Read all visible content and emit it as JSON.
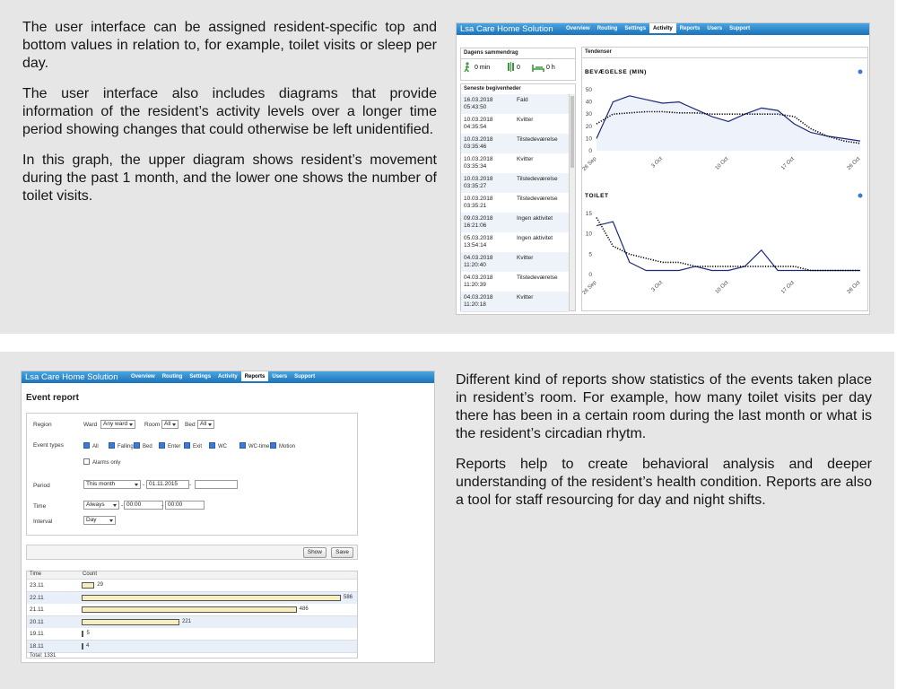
{
  "top_section": {
    "paragraphs": [
      "The user interface can be assigned resident-specific top and bottom values in relation to, for example, toilet visits or sleep per day.",
      "The user interface also includes diagrams that provide information of the resident’s activity levels over a longer time period showing changes that could otherwise be left unidentified.",
      "In this graph, the upper diagram shows resident’s movement during the past 1 month, and the lower one shows the number of toilet visits."
    ],
    "app": {
      "title": "Lsa Care Home Solution",
      "nav": [
        {
          "label": "Overview",
          "active": false
        },
        {
          "label": "Routing",
          "active": false
        },
        {
          "label": "Settings",
          "active": false
        },
        {
          "label": "Activity",
          "active": true
        },
        {
          "label": "Reports",
          "active": false
        },
        {
          "label": "Users",
          "active": false
        },
        {
          "label": "Support",
          "active": false
        }
      ],
      "summary": {
        "title": "Dagens sammendrag",
        "items": [
          "0 min",
          "0",
          "0 h"
        ]
      },
      "events": {
        "title": "Seneste begivenheder",
        "rows": [
          {
            "date": "16.03.2018",
            "time": "05:43:50",
            "event": "Fald"
          },
          {
            "date": "10.03.2018",
            "time": "04:35:54",
            "event": "Kvitter"
          },
          {
            "date": "10.03.2018",
            "time": "03:35:46",
            "event": "Tilstedeværelse"
          },
          {
            "date": "10.03.2018",
            "time": "03:35:34",
            "event": "Kvitter"
          },
          {
            "date": "10.03.2018",
            "time": "03:35:27",
            "event": "Tilstedeværelse"
          },
          {
            "date": "10.03.2018",
            "time": "03:35:21",
            "event": "Tilstedeværelse"
          },
          {
            "date": "09.03.2018",
            "time": "16:21:06",
            "event": "Ingen aktivitet"
          },
          {
            "date": "05.03.2018",
            "time": "13:54:14",
            "event": "Ingen aktivitet"
          },
          {
            "date": "04.03.2018",
            "time": "11:20:40",
            "event": "Kvitter"
          },
          {
            "date": "04.03.2018",
            "time": "11:20:39",
            "event": "Tilstedeværelse"
          },
          {
            "date": "04.03.2018",
            "time": "11:20:18",
            "event": "Kvitter"
          }
        ]
      },
      "trends": {
        "title": "Tendenser",
        "charts": [
          {
            "type": "line",
            "title": "BEVÆGELSE (MIN)",
            "categories": [
              "26 Sep",
              null,
              null,
              null,
              "3 Oct",
              null,
              null,
              null,
              "10 Oct",
              null,
              null,
              null,
              "17 Oct",
              null,
              null,
              null,
              "26 Oct"
            ],
            "ylim": [
              0,
              50
            ],
            "yticks": [
              0,
              10,
              20,
              30,
              40,
              50
            ],
            "series": [
              {
                "color": "#1c2a7a",
                "style": "solid",
                "fill": "#eef2fa",
                "values": [
                  10,
                  40,
                  45,
                  42,
                  39,
                  40,
                  34,
                  28,
                  24,
                  30,
                  35,
                  33,
                  22,
                  15,
                  12,
                  10,
                  8
                ]
              },
              {
                "color": "#000000",
                "style": "dotted",
                "values": [
                  22,
                  30,
                  31,
                  32,
                  32,
                  31,
                  31,
                  30,
                  30,
                  30,
                  30,
                  30,
                  28,
                  18,
                  12,
                  8,
                  6
                ]
              }
            ]
          },
          {
            "type": "line",
            "title": "TOILET",
            "categories": [
              "26 Sep",
              null,
              null,
              null,
              "3 Oct",
              null,
              null,
              null,
              "10 Oct",
              null,
              null,
              null,
              "17 Oct",
              null,
              null,
              null,
              "26 Oct"
            ],
            "ylim": [
              0,
              15
            ],
            "yticks": [
              0,
              5,
              10,
              15
            ],
            "series": [
              {
                "color": "#1c2a7a",
                "style": "solid",
                "values": [
                  12,
                  13,
                  3,
                  1,
                  1,
                  1,
                  2,
                  1,
                  1,
                  2,
                  6,
                  1,
                  1,
                  1,
                  1,
                  1,
                  1
                ]
              },
              {
                "color": "#000000",
                "style": "dotted",
                "values": [
                  14,
                  7,
                  5,
                  4,
                  3,
                  3,
                  2,
                  2,
                  2,
                  2,
                  2,
                  2,
                  2,
                  1,
                  1,
                  1,
                  1
                ]
              }
            ]
          }
        ]
      }
    }
  },
  "bottom_section": {
    "paragraphs": [
      "Different kind of reports show statistics of the events taken place in resident’s room. For example, how many toilet visits per day there has been in a certain room during the last month or what is the resident’s circadian rhytm.",
      "Reports help to create behavioral analysis and deeper understanding of the resident’s health condition. Reports are also a tool for staff resourcing for day and night shifts."
    ],
    "app": {
      "title": "Lsa Care Home Solution",
      "nav": [
        {
          "label": "Overview",
          "active": false
        },
        {
          "label": "Routing",
          "active": false
        },
        {
          "label": "Settings",
          "active": false
        },
        {
          "label": "Activity",
          "active": false
        },
        {
          "label": "Reports",
          "active": true
        },
        {
          "label": "Users",
          "active": false
        },
        {
          "label": "Support",
          "active": false
        }
      ],
      "heading": "Event report",
      "form": {
        "region": {
          "label": "Region",
          "ward_label": "Ward",
          "ward": "Any ward",
          "room_label": "Room",
          "room": "All",
          "bed_label": "Bed",
          "bed": "All"
        },
        "event_types": {
          "label": "Event types",
          "options": [
            {
              "label": "All",
              "checked": true
            },
            {
              "label": "Falling",
              "checked": true
            },
            {
              "label": "Bed",
              "checked": true
            },
            {
              "label": "Enter",
              "checked": true
            },
            {
              "label": "Exit",
              "checked": true
            },
            {
              "label": "WC",
              "checked": true
            },
            {
              "label": "WC-time",
              "checked": true
            },
            {
              "label": "Motion",
              "checked": true
            }
          ],
          "alarms_only": {
            "label": "Alarms only",
            "checked": false
          }
        },
        "period": {
          "label": "Period",
          "value": "This month",
          "from": "01.11.2015",
          "separator": "-"
        },
        "time": {
          "label": "Time",
          "value": "Always",
          "from": "00:00",
          "separator": "-",
          "to": "00:00"
        },
        "interval": {
          "label": "Interval",
          "value": "Day"
        }
      },
      "buttons": [
        "Show",
        "Save"
      ],
      "table": {
        "headers": [
          "Time",
          "Count"
        ],
        "rows": [
          {
            "time": "23.11",
            "count": 29
          },
          {
            "time": "22.11",
            "count": 586
          },
          {
            "time": "21.11",
            "count": 486
          },
          {
            "time": "20.11",
            "count": 221
          },
          {
            "time": "19.11",
            "count": 5
          },
          {
            "time": "18.11",
            "count": 4
          }
        ],
        "total": "Total: 1331"
      }
    }
  }
}
